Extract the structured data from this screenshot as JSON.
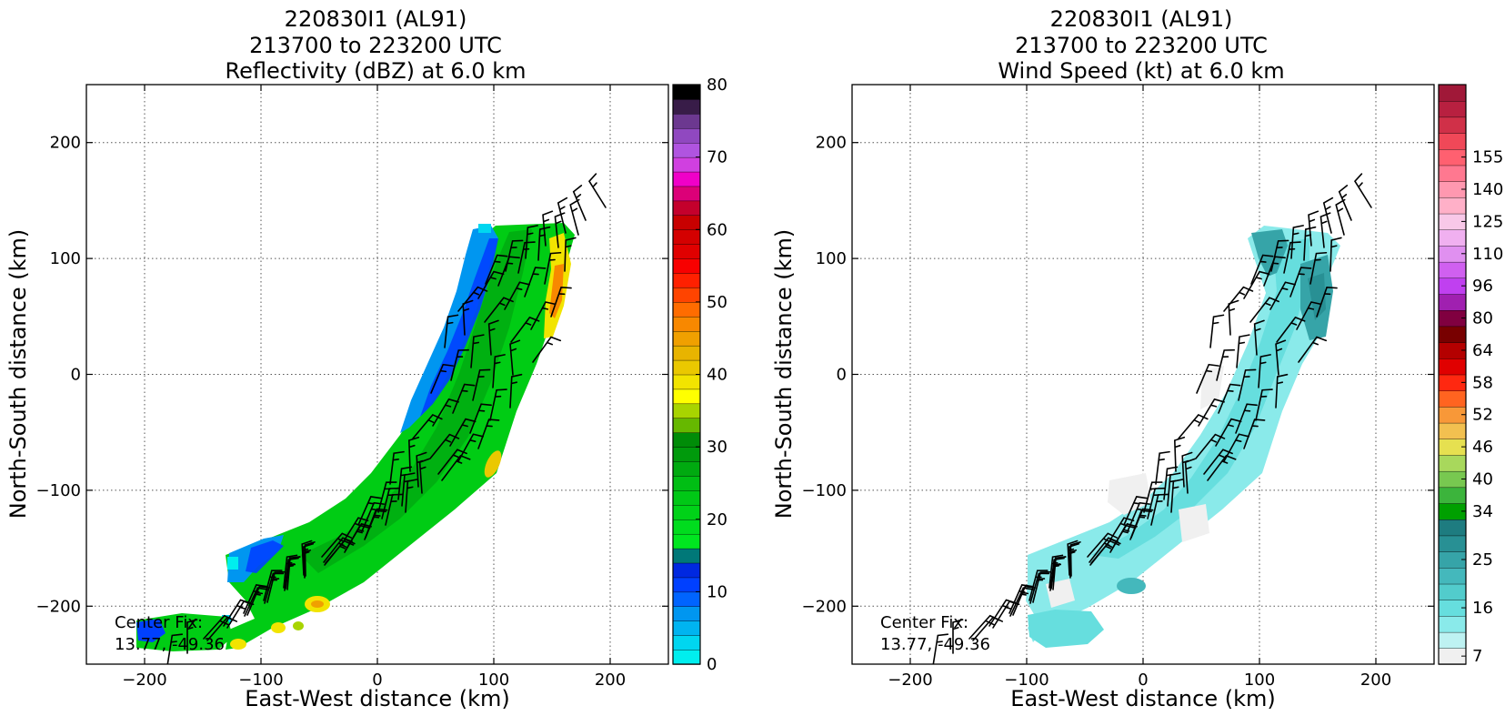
{
  "chart_data": [
    {
      "type": "heatmap",
      "panel": "reflectivity",
      "title_lines": [
        "220830I1 (AL91)",
        "213700 to 223200 UTC",
        "Reflectivity (dBZ) at 6.0 km"
      ],
      "xlabel": "East-West distance (km)",
      "ylabel": "North-South distance (km)",
      "xlim": [
        -250,
        250
      ],
      "ylim": [
        -250,
        250
      ],
      "xticks": [
        -200,
        -100,
        0,
        100,
        200
      ],
      "yticks": [
        -200,
        -100,
        0,
        100,
        200
      ],
      "xtick_labels": [
        "−200",
        "−100",
        "0",
        "100",
        "200"
      ],
      "ytick_labels": [
        "−200",
        "−100",
        "0",
        "100",
        "200"
      ],
      "grid": true,
      "annotation_lines": [
        "Center Fix:",
        "13.77, -49.36"
      ],
      "colorbar": {
        "min": 0,
        "max": 80,
        "ticks": [
          0,
          10,
          20,
          30,
          40,
          50,
          60,
          70,
          80
        ],
        "tick_labels": [
          "0",
          "10",
          "20",
          "30",
          "40",
          "50",
          "60",
          "70",
          "80"
        ],
        "colors": [
          "#00eeee",
          "#00d6f0",
          "#00b4f0",
          "#0096f0",
          "#0064ff",
          "#0040ff",
          "#0028e0",
          "#007878",
          "#00e620",
          "#00dc1e",
          "#00d218",
          "#00c816",
          "#00be14",
          "#00aa10",
          "#009a0c",
          "#008c08",
          "#66b800",
          "#a8d400",
          "#ffff00",
          "#f2e400",
          "#eac800",
          "#e8b400",
          "#f0a000",
          "#f88800",
          "#ff6c00",
          "#ff4400",
          "#ff2000",
          "#f80000",
          "#e00000",
          "#d40000",
          "#c80000",
          "#c4002c",
          "#dc0078",
          "#f000c8",
          "#d040e0",
          "#b054e0",
          "#9048c0",
          "#6c3890",
          "#381c48",
          "#000000"
        ]
      },
      "wind_barbs_shown": true
    },
    {
      "type": "heatmap",
      "panel": "wind_speed",
      "title_lines": [
        "220830I1 (AL91)",
        "213700 to 223200 UTC",
        "Wind Speed (kt) at 6.0 km"
      ],
      "xlabel": "East-West distance (km)",
      "ylabel": "North-South distance (km)",
      "xlim": [
        -250,
        250
      ],
      "ylim": [
        -250,
        250
      ],
      "xticks": [
        -200,
        -100,
        0,
        100,
        200
      ],
      "yticks": [
        -200,
        -100,
        0,
        100,
        200
      ],
      "xtick_labels": [
        "−200",
        "−100",
        "0",
        "100",
        "200"
      ],
      "ytick_labels": [
        "−200",
        "−100",
        "0",
        "100",
        "200"
      ],
      "grid": true,
      "annotation_lines": [
        "Center Fix:",
        "13.77, -49.36"
      ],
      "colorbar": {
        "tick_labels": [
          "7",
          "16",
          "25",
          "34",
          "40",
          "46",
          "52",
          "58",
          "64",
          "80",
          "96",
          "110",
          "125",
          "140",
          "155"
        ],
        "tick_level_index": [
          1,
          4,
          7,
          10,
          12,
          14,
          16,
          18,
          20,
          22,
          24,
          26,
          28,
          30,
          32
        ],
        "colors": [
          "#f0f0f0",
          "#bef2f2",
          "#8aeaea",
          "#66dede",
          "#52cccc",
          "#44b8bc",
          "#36a4a8",
          "#289094",
          "#1e7c80",
          "#00a000",
          "#3cb43c",
          "#78c850",
          "#a8d85c",
          "#e6e050",
          "#f2c050",
          "#f89838",
          "#ff6420",
          "#ff2810",
          "#e00000",
          "#b40000",
          "#780000",
          "#800040",
          "#a020b0",
          "#c040f0",
          "#d060f0",
          "#e090f0",
          "#f0b0f0",
          "#f8c8e8",
          "#ffb0c8",
          "#ff98b0",
          "#ff7890",
          "#ff6070",
          "#f04858",
          "#d03048",
          "#b82040",
          "#a01838"
        ]
      },
      "wind_barbs_shown": true
    }
  ]
}
